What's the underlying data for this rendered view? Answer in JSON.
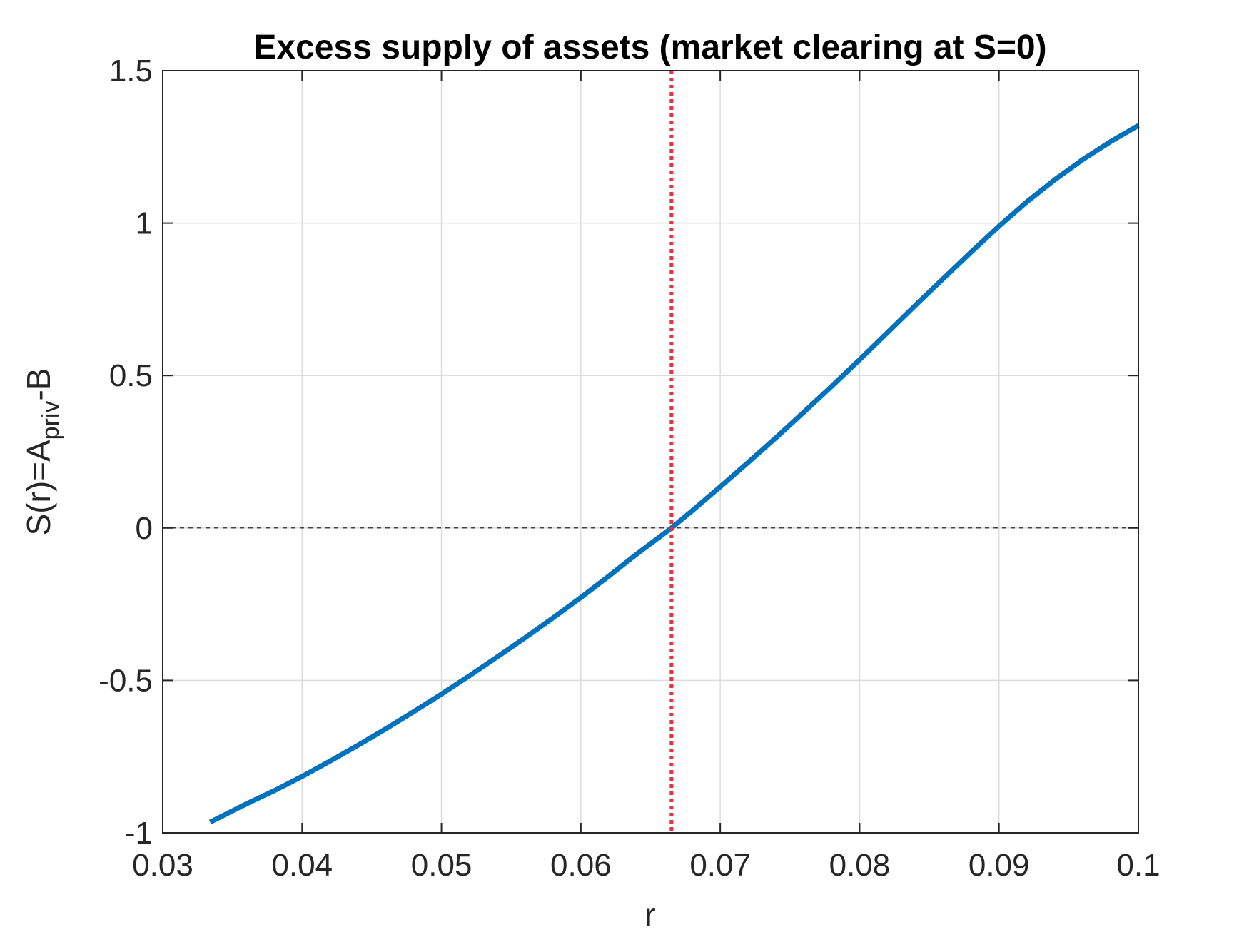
{
  "chart_data": {
    "type": "line",
    "title": "Excess supply of assets (market clearing at S=0)",
    "xlabel": "r",
    "ylabel": {
      "prefix": "S(r)=A",
      "subscript": "priv",
      "suffix": "-B"
    },
    "xlim": [
      0.03,
      0.1
    ],
    "ylim": [
      -1,
      1.5
    ],
    "xticks": [
      0.03,
      0.04,
      0.05,
      0.06,
      0.07,
      0.08,
      0.09,
      0.1
    ],
    "xtick_labels": [
      "0.03",
      "0.04",
      "0.05",
      "0.06",
      "0.07",
      "0.08",
      "0.09",
      "0.1"
    ],
    "yticks": [
      -1,
      -0.5,
      0,
      0.5,
      1,
      1.5
    ],
    "ytick_labels": [
      "-1",
      "-0.5",
      "0",
      "0.5",
      "1",
      "1.5"
    ],
    "grid": true,
    "series": [
      {
        "color": "#0072BD",
        "x": [
          0.0334,
          0.036,
          0.038,
          0.04,
          0.042,
          0.044,
          0.046,
          0.048,
          0.05,
          0.052,
          0.054,
          0.056,
          0.058,
          0.06,
          0.062,
          0.064,
          0.0665,
          0.068,
          0.07,
          0.072,
          0.074,
          0.076,
          0.078,
          0.08,
          0.082,
          0.084,
          0.086,
          0.088,
          0.09,
          0.092,
          0.094,
          0.096,
          0.098,
          0.1
        ],
        "y": [
          -0.965,
          -0.905,
          -0.862,
          -0.815,
          -0.765,
          -0.713,
          -0.659,
          -0.603,
          -0.545,
          -0.485,
          -0.423,
          -0.36,
          -0.295,
          -0.228,
          -0.158,
          -0.086,
          0.0,
          0.057,
          0.135,
          0.215,
          0.296,
          0.38,
          0.465,
          0.552,
          0.641,
          0.73,
          0.818,
          0.905,
          0.99,
          1.07,
          1.142,
          1.208,
          1.267,
          1.32
        ]
      }
    ],
    "reference_lines": [
      {
        "orientation": "horizontal",
        "value": 0,
        "style": "dashed",
        "color": "#404040"
      },
      {
        "orientation": "vertical",
        "value": 0.0665,
        "style": "dotted",
        "color": "#E8333A"
      }
    ]
  }
}
